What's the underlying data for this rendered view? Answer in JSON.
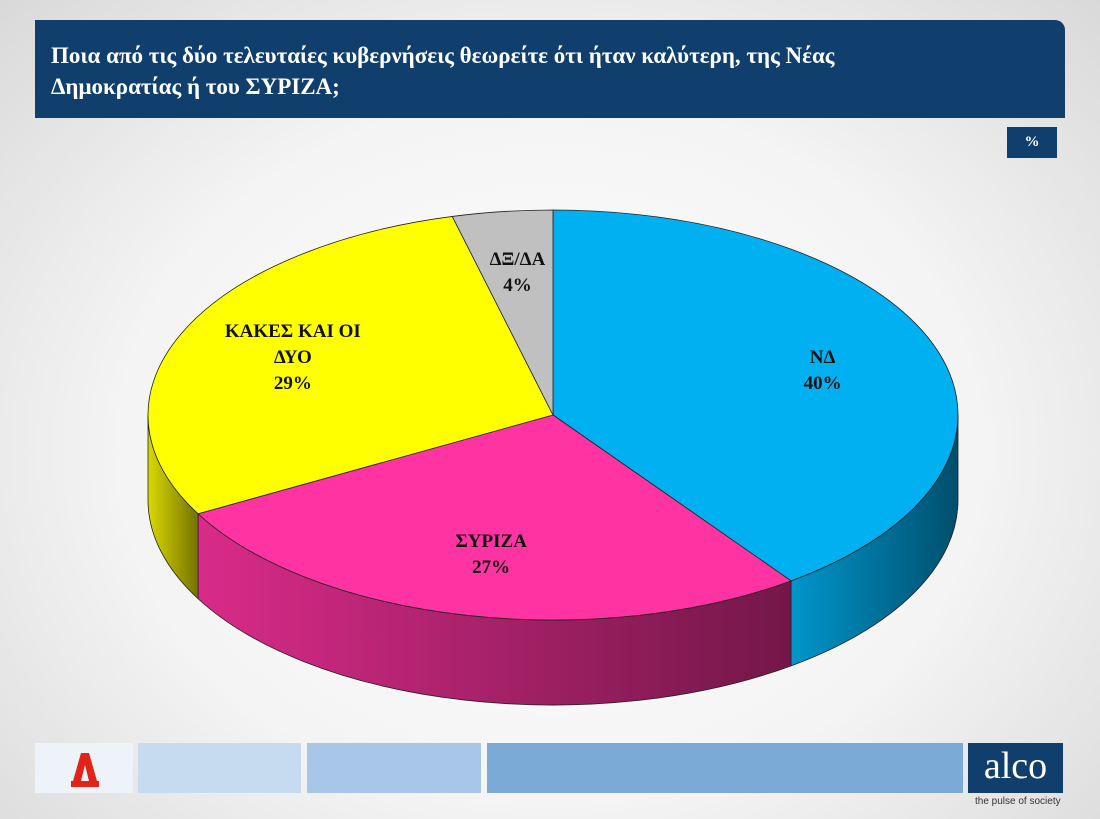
{
  "chart_data": {
    "type": "pie",
    "title": "Ποια από τις δύο τελευταίες κυβερνήσεις θεωρείτε ότι ήταν καλύτερη, της Νέας Δημοκρατίας ή του ΣΥΡΙΖΑ;",
    "unit": "%",
    "categories": [
      "ΝΔ",
      "ΣΥΡΙΖΑ",
      "ΚΑΚΕΣ ΚΑΙ ΟΙ ΔΥΟ",
      "ΔΞ/ΔΑ"
    ],
    "values": [
      40,
      27,
      29,
      4
    ],
    "value_labels": [
      "40%",
      "27%",
      "29%",
      "4%"
    ],
    "colors": [
      "#00b0f0",
      "#ff33a1",
      "#ffff00",
      "#c0c0c0"
    ]
  },
  "footer": {
    "brand": "alco",
    "tagline": "the pulse of society"
  }
}
